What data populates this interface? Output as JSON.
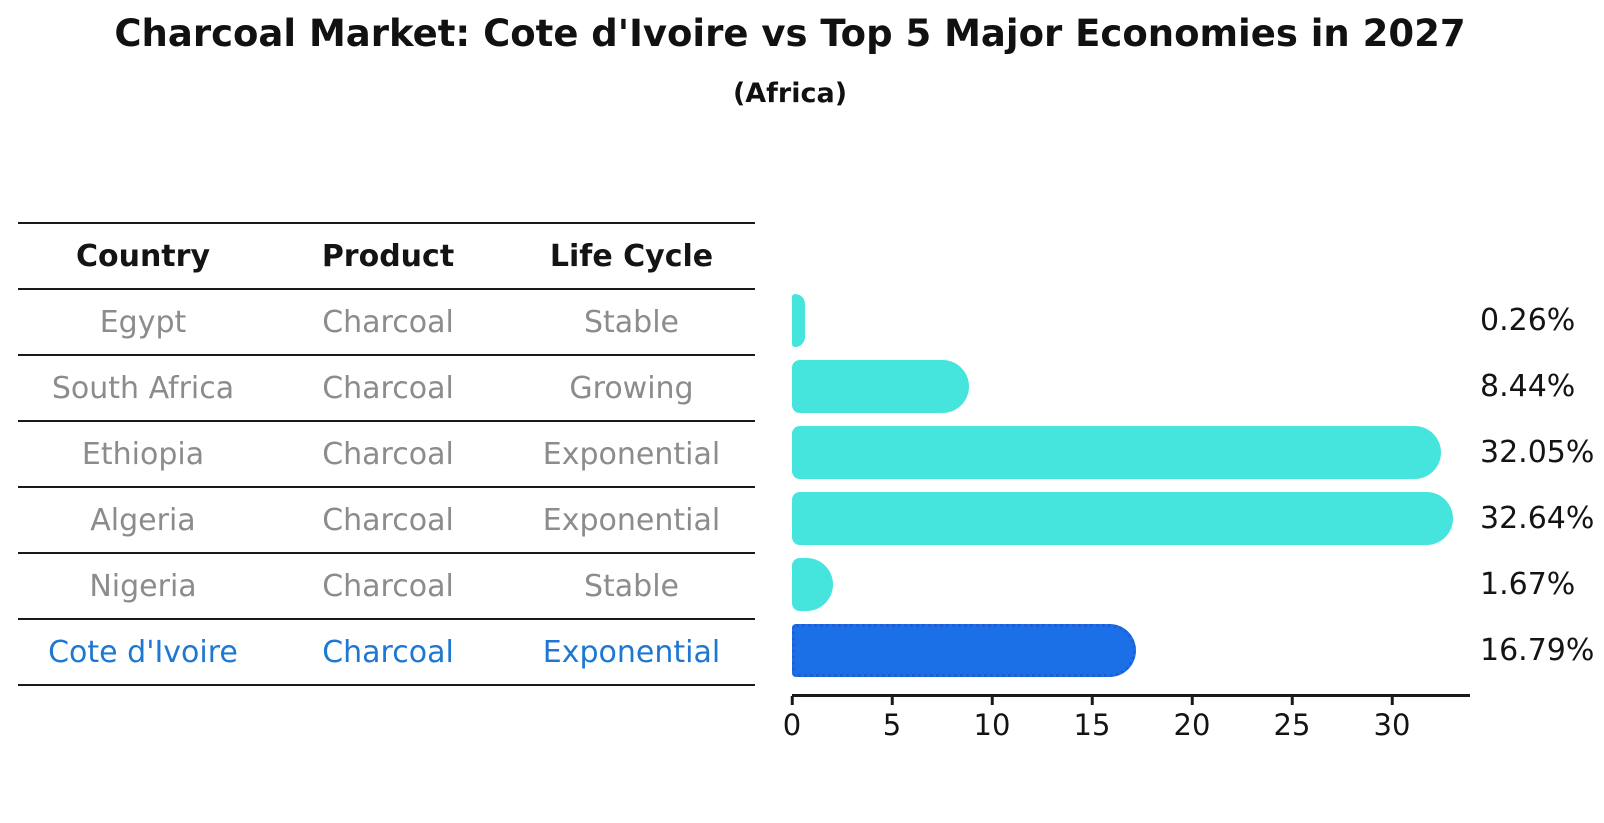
{
  "title": "Charcoal Market: Cote d'Ivoire vs Top 5 Major Economies in 2027",
  "subtitle": "(Africa)",
  "table": {
    "headers": {
      "country": "Country",
      "product": "Product",
      "life_cycle": "Life Cycle"
    },
    "rows": [
      {
        "country": "Egypt",
        "product": "Charcoal",
        "life_cycle": "Stable",
        "highlight": false
      },
      {
        "country": "South Africa",
        "product": "Charcoal",
        "life_cycle": "Growing",
        "highlight": false
      },
      {
        "country": "Ethiopia",
        "product": "Charcoal",
        "life_cycle": "Exponential",
        "highlight": false
      },
      {
        "country": "Algeria",
        "product": "Charcoal",
        "life_cycle": "Exponential",
        "highlight": false
      },
      {
        "country": "Nigeria",
        "product": "Charcoal",
        "life_cycle": "Stable",
        "highlight": false
      },
      {
        "country": "Cote d'Ivoire",
        "product": "Charcoal",
        "life_cycle": "Exponential",
        "highlight": true
      }
    ]
  },
  "chart_data": {
    "type": "bar",
    "orientation": "horizontal",
    "title": "Charcoal Market: Cote d'Ivoire vs Top 5 Major Economies in 2027",
    "subtitle": "(Africa)",
    "categories": [
      "Egypt",
      "South Africa",
      "Ethiopia",
      "Algeria",
      "Nigeria",
      "Cote d'Ivoire"
    ],
    "values": [
      0.26,
      8.44,
      32.05,
      32.64,
      1.67,
      16.79
    ],
    "value_labels": [
      "0.26%",
      "8.44%",
      "32.05%",
      "32.64%",
      "1.67%",
      "16.79%"
    ],
    "xlabel": "",
    "ylabel": "",
    "xlim": [
      0,
      33.8
    ],
    "x_ticks": [
      0,
      5,
      10,
      15,
      20,
      25,
      30
    ],
    "grid": false,
    "legend": false,
    "highlight_index": 5,
    "bar_color": "#45E4DD",
    "highlight_color": "#1B70E8",
    "highlight_border_color": "#1D5FD6",
    "highlight_text_color": "#1E78D2"
  }
}
